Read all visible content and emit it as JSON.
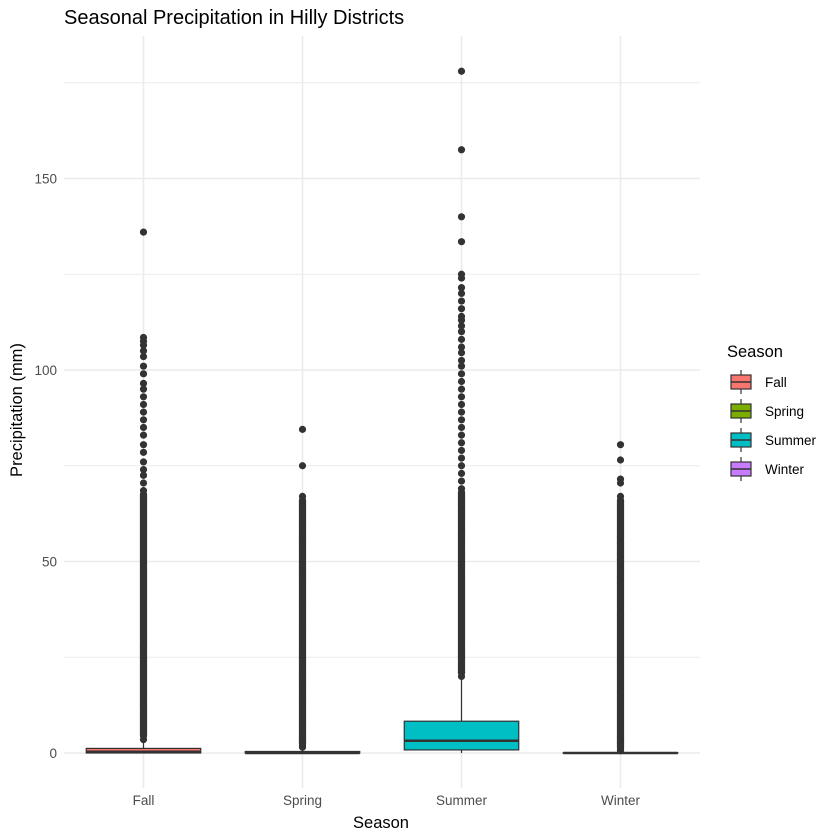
{
  "chart_data": {
    "type": "boxplot",
    "title": "Seasonal Precipitation in Hilly Districts",
    "xlabel": "Season",
    "ylabel": "Precipitation (mm)",
    "ylim": [
      -5,
      182
    ],
    "yticks": [
      0,
      50,
      100,
      150
    ],
    "ytick_labels": [
      "0",
      "50",
      "100",
      "150"
    ],
    "grid": true,
    "legend": {
      "title": "Season",
      "position": "right"
    },
    "categories": [
      "Fall",
      "Spring",
      "Summer",
      "Winter"
    ],
    "series": [
      {
        "name": "Fall",
        "color": "#F8766D",
        "min": 0,
        "q1": 0,
        "median": 0.3,
        "q3": 1.2,
        "upper_whisker": 2.9,
        "outliers": [
          136,
          108.5,
          107.5,
          106.5,
          105,
          103.5,
          101,
          99,
          96.5,
          95,
          93,
          91,
          89,
          87,
          85,
          83,
          80.5,
          78.5,
          76,
          74,
          72.5,
          70.5,
          68.5,
          66.5,
          64.5,
          62.5,
          60,
          57.5,
          55,
          52.5,
          50,
          47.5,
          45,
          42.5,
          40,
          37.5,
          35,
          32.5,
          30,
          27.5,
          25,
          22.5,
          20,
          17.5,
          15,
          12.5,
          10,
          7.5,
          5,
          3.5
        ]
      },
      {
        "name": "Spring",
        "color": "#7CAE00",
        "min": 0,
        "q1": 0,
        "median": 0,
        "q3": 0.4,
        "upper_whisker": 1.0,
        "outliers": [
          84.5,
          75,
          67,
          63.5,
          62,
          59.5,
          58,
          56.5,
          55,
          53.5,
          51.5,
          49.5,
          48,
          46.5,
          45,
          43,
          41,
          39,
          37,
          35,
          33,
          31,
          29,
          27,
          25,
          23,
          21,
          19,
          17,
          15,
          13,
          11,
          9,
          7,
          5.5,
          4,
          3,
          2,
          1.5
        ]
      },
      {
        "name": "Summer",
        "color": "#00BFC4",
        "min": 0,
        "q1": 0.8,
        "median": 3.2,
        "q3": 8.3,
        "upper_whisker": 19.5,
        "outliers": [
          178,
          157.5,
          140,
          133.5,
          125,
          124,
          121.5,
          120,
          118,
          116,
          114,
          113,
          111.5,
          110,
          108,
          106,
          104.5,
          102.5,
          101,
          99,
          97,
          95,
          93,
          91,
          89,
          87,
          85,
          83,
          81,
          79,
          77,
          75,
          73,
          71,
          69,
          67,
          65,
          63,
          61,
          59,
          57,
          55,
          53,
          51,
          49,
          47,
          45,
          43,
          41,
          39,
          37,
          35,
          33,
          31,
          29,
          27,
          25,
          23,
          21,
          20
        ]
      },
      {
        "name": "Winter",
        "color": "#C77CFF",
        "min": 0,
        "q1": 0,
        "median": 0,
        "q3": 0.1,
        "upper_whisker": 0.25,
        "outliers": [
          80.5,
          76.5,
          71.5,
          70.5,
          67,
          64.5,
          63.5,
          61.5,
          59,
          58,
          56.5,
          55,
          53.5,
          52,
          50.5,
          49,
          47.5,
          46,
          44.5,
          43,
          41.5,
          40,
          38,
          36,
          34,
          32,
          30,
          28,
          26,
          24,
          22,
          20,
          18,
          16,
          14,
          12,
          10,
          8,
          6,
          4,
          2.5,
          1.5,
          1,
          0.6
        ]
      }
    ]
  }
}
